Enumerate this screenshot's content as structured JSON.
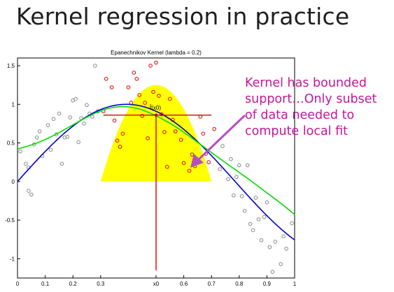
{
  "slide": {
    "title": "Kernel regression in practice",
    "annotation_lines": [
      "Kernel has bounded",
      "support…Only subset",
      "of data needed to",
      "compute local fit"
    ],
    "annotation_color": "#c0189a"
  },
  "chart_data": {
    "type": "scatter",
    "title": "Epanechnikov Kernel (lambda = 0.2)",
    "xlim": [
      0,
      1
    ],
    "ylim": [
      -1.25,
      1.6
    ],
    "x_ticks": [
      "0",
      "0.1",
      "0.2",
      "0.3",
      "x0",
      "0.6",
      "0.7",
      "0.8",
      "0.9",
      "1"
    ],
    "x_tick_values": [
      0,
      0.1,
      0.2,
      0.3,
      0.5,
      0.6,
      0.7,
      0.8,
      0.9,
      1.0
    ],
    "y_ticks": [
      "-1",
      "-0.5",
      "0",
      "0.5",
      "1",
      "1.5"
    ],
    "y_tick_values": [
      -1,
      -0.5,
      0,
      0.5,
      1,
      1.5
    ],
    "grid": false,
    "x0": 0.5,
    "lambda": 0.2,
    "fx0_label": "f̂(x0)",
    "fx0_value": 0.86,
    "kernel_peak": 1.25,
    "colors": {
      "kernel": "#ffff00",
      "in_window_points": "#dd0000",
      "out_window_points": "#888888",
      "true_function": "#0000cc",
      "fit": "#00dd00",
      "local_fit_lines": "#dd0000",
      "arrow": "#b54fc0"
    },
    "points_in_window": [
      [
        0.31,
        0.91
      ],
      [
        0.32,
        1.33
      ],
      [
        0.34,
        1.22
      ],
      [
        0.35,
        0.79
      ],
      [
        0.36,
        0.53
      ],
      [
        0.37,
        0.45
      ],
      [
        0.38,
        0.62
      ],
      [
        0.4,
        1.22
      ],
      [
        0.41,
        1.02
      ],
      [
        0.42,
        1.41
      ],
      [
        0.43,
        1.33
      ],
      [
        0.44,
        1.12
      ],
      [
        0.45,
        0.85
      ],
      [
        0.47,
        0.56
      ],
      [
        0.48,
        1.5
      ],
      [
        0.49,
        1.16
      ],
      [
        0.5,
        1.54
      ],
      [
        0.51,
        1.11
      ],
      [
        0.52,
        0.87
      ],
      [
        0.53,
        0.64
      ],
      [
        0.54,
        0.19
      ],
      [
        0.55,
        1.07
      ],
      [
        0.56,
        0.8
      ],
      [
        0.57,
        0.65
      ],
      [
        0.59,
        0.54
      ],
      [
        0.6,
        0.24
      ],
      [
        0.62,
        0.14
      ],
      [
        0.63,
        0.35
      ],
      [
        0.64,
        0.2
      ],
      [
        0.66,
        0.84
      ],
      [
        0.67,
        0.62
      ],
      [
        0.68,
        0.36
      ],
      [
        0.69,
        0.25
      ],
      [
        0.71,
        0.68
      ],
      [
        0.46,
        1.02
      ]
    ],
    "points_outside": [
      [
        0.01,
        0.39
      ],
      [
        0.03,
        0.23
      ],
      [
        0.04,
        0.18
      ],
      [
        0.04,
        -0.12
      ],
      [
        0.05,
        -0.17
      ],
      [
        0.06,
        0.48
      ],
      [
        0.07,
        0.57
      ],
      [
        0.08,
        0.65
      ],
      [
        0.09,
        0.33
      ],
      [
        0.11,
        0.73
      ],
      [
        0.12,
        0.41
      ],
      [
        0.13,
        0.81
      ],
      [
        0.14,
        0.61
      ],
      [
        0.15,
        0.88
      ],
      [
        0.16,
        0.23
      ],
      [
        0.17,
        0.57
      ],
      [
        0.18,
        0.58
      ],
      [
        0.19,
        0.83
      ],
      [
        0.2,
        1.05
      ],
      [
        0.21,
        1.07
      ],
      [
        0.22,
        0.51
      ],
      [
        0.23,
        0.82
      ],
      [
        0.24,
        0.75
      ],
      [
        0.25,
        0.99
      ],
      [
        0.26,
        0.88
      ],
      [
        0.27,
        0.84
      ],
      [
        0.28,
        1.5
      ],
      [
        0.29,
        0.91
      ],
      [
        0.73,
        0.16
      ],
      [
        0.74,
        0.46
      ],
      [
        0.76,
        0.03
      ],
      [
        0.77,
        0.29
      ],
      [
        0.78,
        -0.18
      ],
      [
        0.79,
        0.06
      ],
      [
        0.8,
        0.21
      ],
      [
        0.81,
        -0.19
      ],
      [
        0.82,
        -0.38
      ],
      [
        0.83,
        0.21
      ],
      [
        0.84,
        -0.55
      ],
      [
        0.85,
        -0.63
      ],
      [
        0.86,
        -0.21
      ],
      [
        0.87,
        -0.49
      ],
      [
        0.88,
        -0.76
      ],
      [
        0.89,
        -0.46
      ],
      [
        0.9,
        -0.27
      ],
      [
        0.91,
        -0.85
      ],
      [
        0.92,
        -1.17
      ],
      [
        0.93,
        -0.78
      ],
      [
        0.95,
        -1.07
      ],
      [
        0.96,
        -0.71
      ],
      [
        0.97,
        -0.87
      ],
      [
        0.99,
        -0.54
      ]
    ]
  }
}
